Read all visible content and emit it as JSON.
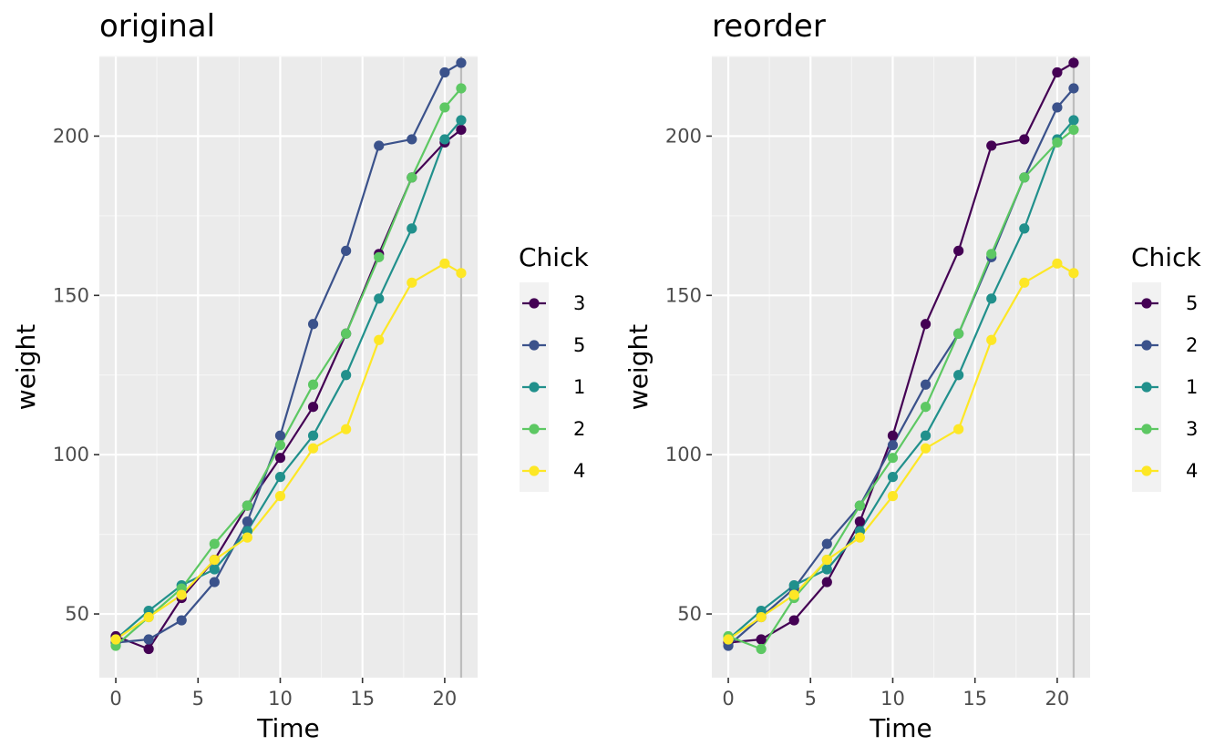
{
  "colors": {
    "panel_bg": "#ebebeb",
    "grid_major": "#ffffff",
    "grid_minor": "#f5f5f5",
    "tick": "#333333",
    "vline": "#bdbdbd",
    "legend_key_bg": "#f2f2f2"
  },
  "chart_data": [
    {
      "type": "line",
      "title": "original",
      "xlabel": "Time",
      "ylabel": "weight",
      "x_ticks": [
        0,
        5,
        10,
        15,
        20
      ],
      "y_ticks": [
        50,
        100,
        150,
        200
      ],
      "xlim": [
        -1,
        22
      ],
      "ylim": [
        30,
        225
      ],
      "vline": 21,
      "legend_title": "Chick",
      "series": [
        {
          "name": "3",
          "color": "#440154",
          "x": [
            0,
            2,
            4,
            6,
            8,
            10,
            12,
            14,
            16,
            18,
            20,
            21
          ],
          "values": [
            43,
            39,
            55,
            67,
            84,
            99,
            115,
            138,
            163,
            187,
            198,
            202
          ]
        },
        {
          "name": "5",
          "color": "#3b528b",
          "x": [
            0,
            2,
            4,
            6,
            8,
            10,
            12,
            14,
            16,
            18,
            20,
            21
          ],
          "values": [
            41,
            42,
            48,
            60,
            79,
            106,
            141,
            164,
            197,
            199,
            220,
            223
          ]
        },
        {
          "name": "1",
          "color": "#21908c",
          "x": [
            0,
            2,
            4,
            6,
            8,
            10,
            12,
            14,
            16,
            18,
            20,
            21
          ],
          "values": [
            42,
            51,
            59,
            64,
            76,
            93,
            106,
            125,
            149,
            171,
            199,
            205
          ]
        },
        {
          "name": "2",
          "color": "#5dc863",
          "x": [
            0,
            2,
            4,
            6,
            8,
            10,
            12,
            14,
            16,
            18,
            20,
            21
          ],
          "values": [
            40,
            49,
            58,
            72,
            84,
            103,
            122,
            138,
            162,
            187,
            209,
            215
          ]
        },
        {
          "name": "4",
          "color": "#fde725",
          "x": [
            0,
            2,
            4,
            6,
            8,
            10,
            12,
            14,
            16,
            18,
            20,
            21
          ],
          "values": [
            42,
            49,
            56,
            67,
            74,
            87,
            102,
            108,
            136,
            154,
            160,
            157
          ]
        }
      ]
    },
    {
      "type": "line",
      "title": "reorder",
      "xlabel": "Time",
      "ylabel": "weight",
      "x_ticks": [
        0,
        5,
        10,
        15,
        20
      ],
      "y_ticks": [
        50,
        100,
        150,
        200
      ],
      "xlim": [
        -1,
        22
      ],
      "ylim": [
        30,
        225
      ],
      "vline": 21,
      "legend_title": "Chick",
      "series": [
        {
          "name": "5",
          "color": "#440154",
          "x": [
            0,
            2,
            4,
            6,
            8,
            10,
            12,
            14,
            16,
            18,
            20,
            21
          ],
          "values": [
            41,
            42,
            48,
            60,
            79,
            106,
            141,
            164,
            197,
            199,
            220,
            223
          ]
        },
        {
          "name": "2",
          "color": "#3b528b",
          "x": [
            0,
            2,
            4,
            6,
            8,
            10,
            12,
            14,
            16,
            18,
            20,
            21
          ],
          "values": [
            40,
            49,
            58,
            72,
            84,
            103,
            122,
            138,
            162,
            187,
            209,
            215
          ]
        },
        {
          "name": "1",
          "color": "#21908c",
          "x": [
            0,
            2,
            4,
            6,
            8,
            10,
            12,
            14,
            16,
            18,
            20,
            21
          ],
          "values": [
            42,
            51,
            59,
            64,
            76,
            93,
            106,
            125,
            149,
            171,
            199,
            205
          ]
        },
        {
          "name": "3",
          "color": "#5dc863",
          "x": [
            0,
            2,
            4,
            6,
            8,
            10,
            12,
            14,
            16,
            18,
            20,
            21
          ],
          "values": [
            43,
            39,
            55,
            67,
            84,
            99,
            115,
            138,
            163,
            187,
            198,
            202
          ]
        },
        {
          "name": "4",
          "color": "#fde725",
          "x": [
            0,
            2,
            4,
            6,
            8,
            10,
            12,
            14,
            16,
            18,
            20,
            21
          ],
          "values": [
            42,
            49,
            56,
            67,
            74,
            87,
            102,
            108,
            136,
            154,
            160,
            157
          ]
        }
      ]
    }
  ]
}
